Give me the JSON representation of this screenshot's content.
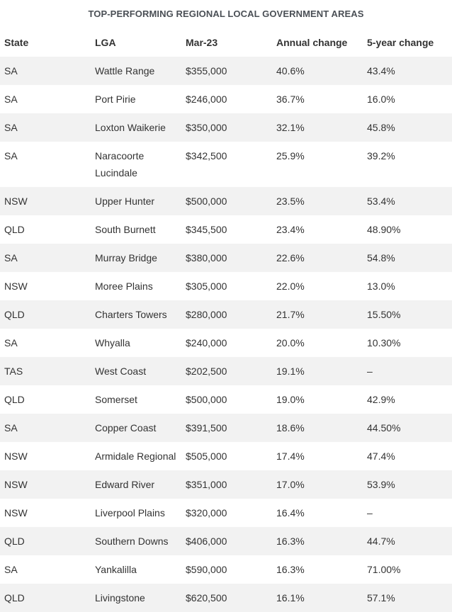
{
  "chart_data": {
    "type": "table",
    "title": "TOP-PERFORMING REGIONAL LOCAL GOVERNMENT AREAS",
    "columns": [
      "State",
      "LGA",
      "Mar-23",
      "Annual change",
      "5-year change"
    ],
    "rows": [
      [
        "SA",
        "Wattle Range",
        "$355,000",
        "40.6%",
        "43.4%"
      ],
      [
        "SA",
        "Port Pirie",
        "$246,000",
        "36.7%",
        "16.0%"
      ],
      [
        "SA",
        "Loxton Waikerie",
        "$350,000",
        "32.1%",
        "45.8%"
      ],
      [
        "SA",
        "Naracoorte Lucindale",
        "$342,500",
        "25.9%",
        "39.2%"
      ],
      [
        "NSW",
        "Upper Hunter",
        "$500,000",
        "23.5%",
        "53.4%"
      ],
      [
        "QLD",
        "South Burnett",
        "$345,500",
        "23.4%",
        "48.90%"
      ],
      [
        "SA",
        "Murray Bridge",
        "$380,000",
        "22.6%",
        "54.8%"
      ],
      [
        "NSW",
        "Moree Plains",
        "$305,000",
        "22.0%",
        "13.0%"
      ],
      [
        "QLD",
        "Charters Towers",
        "$280,000",
        "21.7%",
        "15.50%"
      ],
      [
        "SA",
        "Whyalla",
        "$240,000",
        "20.0%",
        "10.30%"
      ],
      [
        "TAS",
        "West Coast",
        "$202,500",
        "19.1%",
        "–"
      ],
      [
        "QLD",
        "Somerset",
        "$500,000",
        "19.0%",
        "42.9%"
      ],
      [
        "SA",
        "Copper Coast",
        "$391,500",
        "18.6%",
        "44.50%"
      ],
      [
        "NSW",
        "Armidale Regional",
        "$505,000",
        "17.4%",
        "47.4%"
      ],
      [
        "NSW",
        "Edward River",
        "$351,000",
        "17.0%",
        "53.9%"
      ],
      [
        "NSW",
        "Liverpool Plains",
        "$320,000",
        "16.4%",
        "–"
      ],
      [
        "QLD",
        "Southern Downs",
        "$406,000",
        "16.3%",
        "44.7%"
      ],
      [
        "SA",
        "Yankalilla",
        "$590,000",
        "16.3%",
        "71.00%"
      ],
      [
        "QLD",
        "Livingstone",
        "$620,500",
        "16.1%",
        "57.1%"
      ]
    ]
  },
  "colors": {
    "stripe": "#f2f2f2",
    "background": "#ffffff",
    "text": "#333333",
    "title": "#4a4f55"
  }
}
